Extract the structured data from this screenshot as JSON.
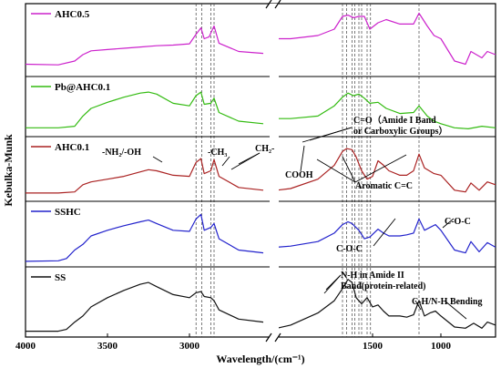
{
  "chart_data": {
    "type": "line",
    "title": "",
    "xlabel": "Wavelength/(cm⁻¹)",
    "ylabel": "Kebulka-Munk",
    "x_axis": {
      "direction": "decreasing",
      "broken": true,
      "segment_left": [
        4000,
        2500
      ],
      "segment_right": [
        2200,
        600
      ],
      "tick_labels": [
        "4000",
        "3500",
        "3000",
        "1500",
        "1000"
      ],
      "ticks": [
        4000,
        3500,
        3000,
        1500,
        1000
      ]
    },
    "reference_lines": [
      2960,
      2925,
      2870,
      2850,
      1720,
      1690,
      1650,
      1630,
      1600,
      1580,
      1540,
      1515,
      1160
    ],
    "panel_order": [
      "AHC0.5",
      "Pb@AHC0.1",
      "AHC0.1",
      "SSHC",
      "SS"
    ],
    "series": [
      {
        "name": "AHC0.5",
        "color": "#cc22cc",
        "left_points": [
          [
            4000,
            0.15
          ],
          [
            3800,
            0.14
          ],
          [
            3700,
            0.2
          ],
          [
            3650,
            0.3
          ],
          [
            3600,
            0.36
          ],
          [
            3500,
            0.38
          ],
          [
            3400,
            0.4
          ],
          [
            3300,
            0.42
          ],
          [
            3200,
            0.44
          ],
          [
            3100,
            0.45
          ],
          [
            3000,
            0.47
          ],
          [
            2960,
            0.62
          ],
          [
            2930,
            0.72
          ],
          [
            2910,
            0.55
          ],
          [
            2880,
            0.58
          ],
          [
            2850,
            0.75
          ],
          [
            2820,
            0.48
          ],
          [
            2700,
            0.35
          ],
          [
            2550,
            0.32
          ]
        ],
        "right_points": [
          [
            2200,
            0.55
          ],
          [
            2100,
            0.55
          ],
          [
            1900,
            0.6
          ],
          [
            1780,
            0.7
          ],
          [
            1720,
            0.9
          ],
          [
            1680,
            0.92
          ],
          [
            1640,
            0.88
          ],
          [
            1600,
            0.9
          ],
          [
            1560,
            0.9
          ],
          [
            1520,
            0.7
          ],
          [
            1460,
            0.8
          ],
          [
            1400,
            0.85
          ],
          [
            1300,
            0.78
          ],
          [
            1200,
            0.78
          ],
          [
            1160,
            0.95
          ],
          [
            1100,
            0.75
          ],
          [
            1050,
            0.6
          ],
          [
            1000,
            0.55
          ],
          [
            900,
            0.2
          ],
          [
            820,
            0.15
          ],
          [
            780,
            0.35
          ],
          [
            700,
            0.25
          ],
          [
            660,
            0.35
          ],
          [
            600,
            0.3
          ]
        ]
      },
      {
        "name": "Pb@AHC0.1",
        "color": "#33bb11",
        "left_points": [
          [
            4000,
            0.12
          ],
          [
            3800,
            0.12
          ],
          [
            3700,
            0.15
          ],
          [
            3650,
            0.35
          ],
          [
            3600,
            0.5
          ],
          [
            3500,
            0.62
          ],
          [
            3400,
            0.72
          ],
          [
            3300,
            0.8
          ],
          [
            3250,
            0.82
          ],
          [
            3200,
            0.78
          ],
          [
            3100,
            0.6
          ],
          [
            3000,
            0.55
          ],
          [
            2960,
            0.75
          ],
          [
            2930,
            0.82
          ],
          [
            2910,
            0.58
          ],
          [
            2870,
            0.6
          ],
          [
            2850,
            0.7
          ],
          [
            2820,
            0.42
          ],
          [
            2700,
            0.25
          ],
          [
            2550,
            0.2
          ]
        ],
        "right_points": [
          [
            2200,
            0.3
          ],
          [
            2100,
            0.3
          ],
          [
            1900,
            0.35
          ],
          [
            1780,
            0.55
          ],
          [
            1720,
            0.72
          ],
          [
            1680,
            0.8
          ],
          [
            1640,
            0.75
          ],
          [
            1600,
            0.78
          ],
          [
            1560,
            0.7
          ],
          [
            1520,
            0.6
          ],
          [
            1460,
            0.62
          ],
          [
            1400,
            0.5
          ],
          [
            1300,
            0.4
          ],
          [
            1200,
            0.42
          ],
          [
            1160,
            0.55
          ],
          [
            1100,
            0.35
          ],
          [
            1050,
            0.25
          ],
          [
            1000,
            0.2
          ],
          [
            900,
            0.12
          ],
          [
            800,
            0.1
          ],
          [
            700,
            0.15
          ],
          [
            600,
            0.12
          ]
        ]
      },
      {
        "name": "AHC0.1",
        "color": "#aa2222",
        "left_points": [
          [
            4000,
            0.1
          ],
          [
            3800,
            0.1
          ],
          [
            3700,
            0.12
          ],
          [
            3650,
            0.25
          ],
          [
            3600,
            0.3
          ],
          [
            3500,
            0.35
          ],
          [
            3400,
            0.4
          ],
          [
            3300,
            0.48
          ],
          [
            3250,
            0.52
          ],
          [
            3200,
            0.5
          ],
          [
            3100,
            0.42
          ],
          [
            3000,
            0.4
          ],
          [
            2960,
            0.65
          ],
          [
            2930,
            0.72
          ],
          [
            2910,
            0.45
          ],
          [
            2870,
            0.5
          ],
          [
            2850,
            0.7
          ],
          [
            2820,
            0.4
          ],
          [
            2700,
            0.2
          ],
          [
            2550,
            0.15
          ]
        ],
        "right_points": [
          [
            2200,
            0.15
          ],
          [
            2100,
            0.18
          ],
          [
            1900,
            0.35
          ],
          [
            1780,
            0.6
          ],
          [
            1720,
            0.85
          ],
          [
            1690,
            0.9
          ],
          [
            1650,
            0.88
          ],
          [
            1620,
            0.75
          ],
          [
            1580,
            0.5
          ],
          [
            1540,
            0.35
          ],
          [
            1500,
            0.4
          ],
          [
            1460,
            0.68
          ],
          [
            1420,
            0.6
          ],
          [
            1380,
            0.5
          ],
          [
            1300,
            0.42
          ],
          [
            1250,
            0.42
          ],
          [
            1200,
            0.5
          ],
          [
            1160,
            0.8
          ],
          [
            1120,
            0.55
          ],
          [
            1050,
            0.45
          ],
          [
            1000,
            0.42
          ],
          [
            900,
            0.15
          ],
          [
            820,
            0.12
          ],
          [
            780,
            0.28
          ],
          [
            720,
            0.15
          ],
          [
            660,
            0.3
          ],
          [
            600,
            0.25
          ]
        ]
      },
      {
        "name": "SSHC",
        "color": "#2222cc",
        "left_points": [
          [
            4000,
            0.05
          ],
          [
            3800,
            0.06
          ],
          [
            3750,
            0.1
          ],
          [
            3700,
            0.25
          ],
          [
            3650,
            0.35
          ],
          [
            3600,
            0.5
          ],
          [
            3500,
            0.6
          ],
          [
            3400,
            0.68
          ],
          [
            3300,
            0.75
          ],
          [
            3250,
            0.78
          ],
          [
            3200,
            0.72
          ],
          [
            3100,
            0.6
          ],
          [
            3000,
            0.58
          ],
          [
            2960,
            0.8
          ],
          [
            2930,
            0.88
          ],
          [
            2910,
            0.6
          ],
          [
            2870,
            0.65
          ],
          [
            2850,
            0.72
          ],
          [
            2820,
            0.45
          ],
          [
            2700,
            0.25
          ],
          [
            2550,
            0.2
          ]
        ],
        "right_points": [
          [
            2200,
            0.3
          ],
          [
            2100,
            0.32
          ],
          [
            1900,
            0.4
          ],
          [
            1780,
            0.55
          ],
          [
            1720,
            0.7
          ],
          [
            1680,
            0.75
          ],
          [
            1650,
            0.72
          ],
          [
            1600,
            0.6
          ],
          [
            1560,
            0.45
          ],
          [
            1520,
            0.48
          ],
          [
            1460,
            0.62
          ],
          [
            1420,
            0.55
          ],
          [
            1380,
            0.5
          ],
          [
            1300,
            0.5
          ],
          [
            1250,
            0.52
          ],
          [
            1200,
            0.55
          ],
          [
            1160,
            0.8
          ],
          [
            1120,
            0.6
          ],
          [
            1080,
            0.65
          ],
          [
            1040,
            0.7
          ],
          [
            1000,
            0.6
          ],
          [
            900,
            0.25
          ],
          [
            820,
            0.2
          ],
          [
            780,
            0.4
          ],
          [
            720,
            0.22
          ],
          [
            660,
            0.38
          ],
          [
            600,
            0.3
          ]
        ]
      },
      {
        "name": "SS",
        "color": "#111111",
        "left_points": [
          [
            4000,
            0.05
          ],
          [
            3800,
            0.05
          ],
          [
            3750,
            0.08
          ],
          [
            3700,
            0.2
          ],
          [
            3650,
            0.3
          ],
          [
            3600,
            0.45
          ],
          [
            3500,
            0.6
          ],
          [
            3400,
            0.72
          ],
          [
            3300,
            0.82
          ],
          [
            3250,
            0.85
          ],
          [
            3200,
            0.78
          ],
          [
            3100,
            0.65
          ],
          [
            3000,
            0.6
          ],
          [
            2960,
            0.68
          ],
          [
            2930,
            0.7
          ],
          [
            2910,
            0.62
          ],
          [
            2870,
            0.6
          ],
          [
            2850,
            0.55
          ],
          [
            2820,
            0.4
          ],
          [
            2700,
            0.25
          ],
          [
            2550,
            0.2
          ]
        ],
        "right_points": [
          [
            2200,
            0.1
          ],
          [
            2100,
            0.15
          ],
          [
            1900,
            0.35
          ],
          [
            1780,
            0.55
          ],
          [
            1720,
            0.75
          ],
          [
            1680,
            0.9
          ],
          [
            1650,
            0.85
          ],
          [
            1620,
            0.6
          ],
          [
            1580,
            0.5
          ],
          [
            1540,
            0.6
          ],
          [
            1500,
            0.45
          ],
          [
            1460,
            0.48
          ],
          [
            1420,
            0.38
          ],
          [
            1380,
            0.3
          ],
          [
            1300,
            0.3
          ],
          [
            1250,
            0.28
          ],
          [
            1200,
            0.32
          ],
          [
            1160,
            0.55
          ],
          [
            1120,
            0.3
          ],
          [
            1080,
            0.35
          ],
          [
            1040,
            0.38
          ],
          [
            1000,
            0.3
          ],
          [
            900,
            0.12
          ],
          [
            820,
            0.1
          ],
          [
            760,
            0.18
          ],
          [
            700,
            0.1
          ],
          [
            660,
            0.2
          ],
          [
            600,
            0.15
          ]
        ]
      }
    ],
    "annotations": [
      "-NH₂/-OH",
      "-CH₃",
      "CH₂-",
      "C=O（Amide I Band",
      "or Carboxylic Groups）",
      "COOH",
      "Aromatic C=C",
      "C-O-C",
      "C-O-C",
      "N-H in Amide II",
      "Band(protein-related)",
      "C-H/N-H Bending"
    ]
  }
}
